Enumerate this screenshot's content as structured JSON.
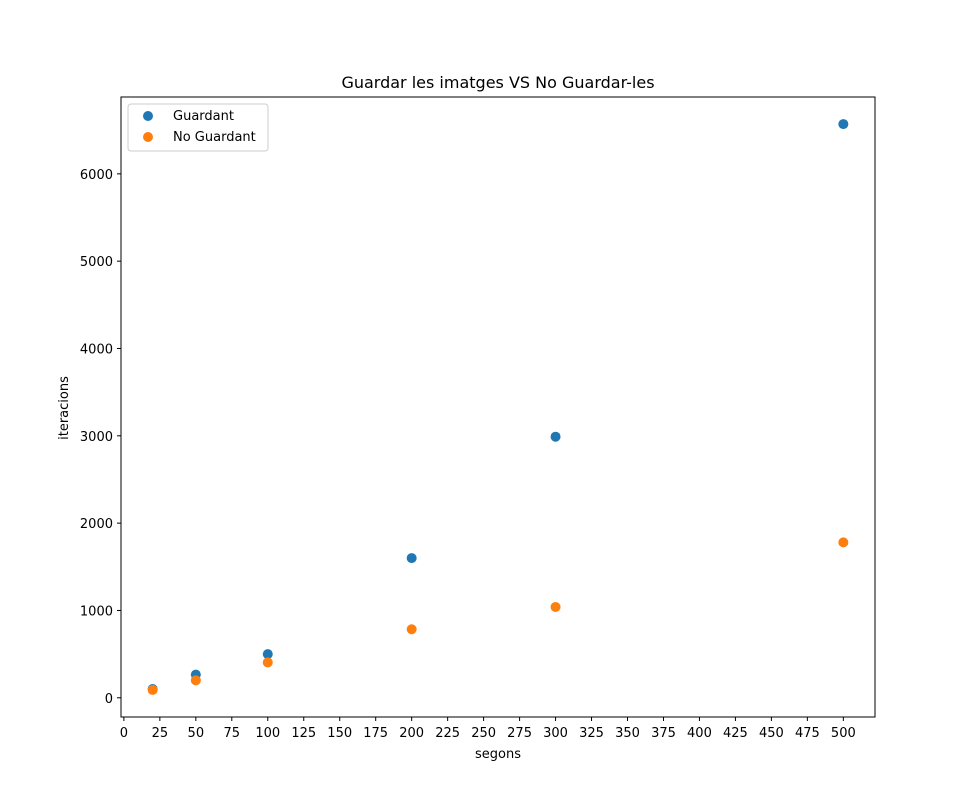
{
  "chart_data": {
    "type": "scatter",
    "title": "Guardar les imatges VS No Guardar-les",
    "xlabel": "segons",
    "ylabel": "iteracions",
    "xlim": [
      -2,
      522
    ],
    "ylim": [
      -220,
      6880
    ],
    "xticks": [
      0,
      25,
      50,
      75,
      100,
      125,
      150,
      175,
      200,
      225,
      250,
      275,
      300,
      325,
      350,
      375,
      400,
      425,
      450,
      475,
      500
    ],
    "yticks": [
      0,
      1000,
      2000,
      3000,
      4000,
      5000,
      6000
    ],
    "grid": false,
    "legend_position": "top-left",
    "series": [
      {
        "name": "Guardant",
        "color": "#1f77b4",
        "x": [
          20,
          50,
          100,
          200,
          300,
          500
        ],
        "y": [
          100,
          265,
          500,
          1600,
          2990,
          6570
        ]
      },
      {
        "name": "No Guardant",
        "color": "#ff7f0e",
        "x": [
          20,
          50,
          100,
          200,
          300,
          500
        ],
        "y": [
          90,
          200,
          405,
          785,
          1040,
          1780
        ]
      }
    ]
  }
}
